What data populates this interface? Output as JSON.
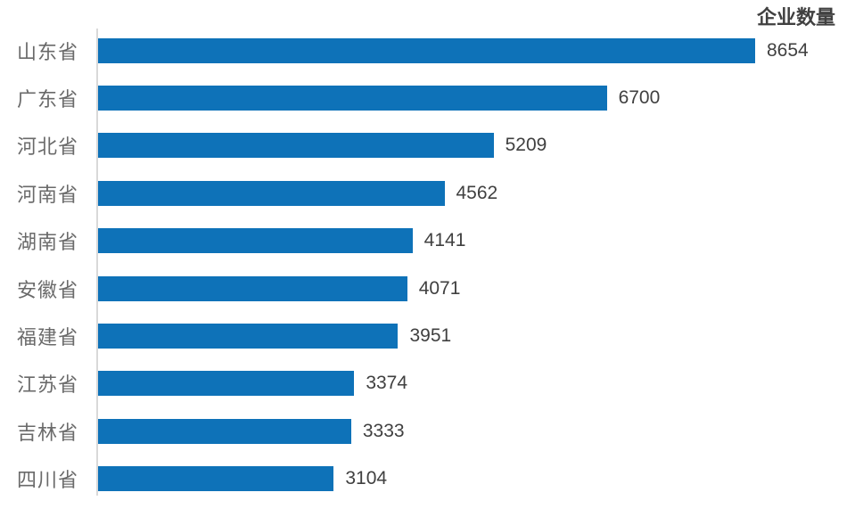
{
  "page": {
    "background_color": "#ffffff"
  },
  "chart_data": {
    "type": "bar",
    "orientation": "horizontal",
    "title": "企业数量",
    "categories": [
      "山东省",
      "广东省",
      "河北省",
      "河南省",
      "湖南省",
      "安徽省",
      "福建省",
      "江苏省",
      "吉林省",
      "四川省"
    ],
    "values": [
      8654,
      6700,
      5209,
      4562,
      4141,
      4071,
      3951,
      3374,
      3333,
      3104
    ],
    "xlim": [
      0,
      8654
    ],
    "grid": false,
    "legend": false,
    "value_labels_position": "outside-end",
    "bar_color": "#0e72b8",
    "axis_line_color": "#d9d9d9",
    "category_label_color": "#6a6a6a",
    "value_label_color": "#404040",
    "title_color": "#404040"
  }
}
